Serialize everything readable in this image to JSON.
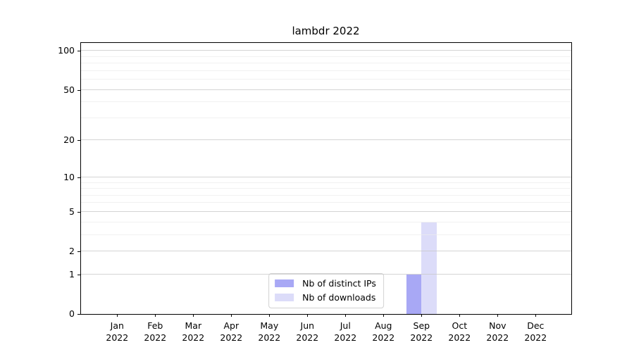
{
  "chart_data": {
    "type": "bar",
    "title": "lambdr 2022",
    "xlabel": "",
    "ylabel": "",
    "categories": [
      "Jan 2022",
      "Feb 2022",
      "Mar 2022",
      "Apr 2022",
      "May 2022",
      "Jun 2022",
      "Jul 2022",
      "Aug 2022",
      "Sep 2022",
      "Oct 2022",
      "Nov 2022",
      "Dec 2022"
    ],
    "x_months": [
      "Jan",
      "Feb",
      "Mar",
      "Apr",
      "May",
      "Jun",
      "Jul",
      "Aug",
      "Sep",
      "Oct",
      "Nov",
      "Dec"
    ],
    "x_year": "2022",
    "series": [
      {
        "name": "Nb of distinct IPs",
        "color": "#a8a8f5",
        "values": [
          0,
          0,
          0,
          0,
          0,
          0,
          0,
          0,
          1,
          0,
          0,
          0
        ]
      },
      {
        "name": "Nb of downloads",
        "color": "#dcdcf9",
        "values": [
          0,
          0,
          0,
          0,
          0,
          0,
          0,
          0,
          4,
          0,
          0,
          0
        ]
      }
    ],
    "yscale": "log1p",
    "y_ticks": [
      0,
      1,
      2,
      5,
      10,
      20,
      50,
      100
    ],
    "y_tick_labels": [
      "0",
      "1",
      "2",
      "5",
      "10",
      "20",
      "50",
      "100"
    ],
    "y_minor_gridlines": [
      3,
      4,
      6,
      7,
      8,
      9,
      30,
      40,
      60,
      70,
      80,
      90
    ],
    "ylim": [
      0,
      115
    ],
    "grid": true,
    "legend_position": "lower center"
  },
  "colors": {
    "background": "#ffffff",
    "spine": "#000000",
    "grid_major": "#c9c9c9",
    "grid_minor": "#ececec",
    "text": "#000000",
    "bar_distinct_ips": "#a8a8f5",
    "bar_downloads": "#dcdcf9"
  }
}
